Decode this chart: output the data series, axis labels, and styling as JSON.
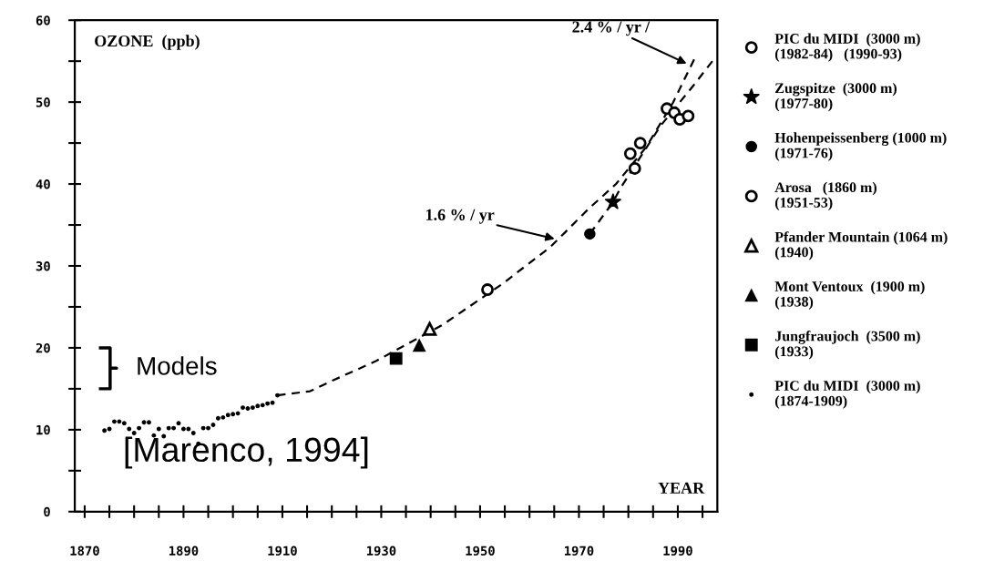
{
  "chart_data": {
    "type": "scatter",
    "ylabel": "OZONE  (ppb)",
    "xlabel": "YEAR",
    "xlim": [
      1868,
      1998
    ],
    "ylim": [
      0,
      60
    ],
    "xticks": [
      1870,
      {
        "value": 1875,
        "label": null
      },
      {
        "value": 1880,
        "label": null
      },
      {
        "value": 1885,
        "label": null
      },
      1890,
      {
        "value": 1895,
        "label": null
      },
      {
        "value": 1900,
        "label": null
      },
      {
        "value": 1905,
        "label": null
      },
      1910,
      {
        "value": 1915,
        "label": null
      },
      {
        "value": 1920,
        "label": null
      },
      {
        "value": 1925,
        "label": null
      },
      1930,
      {
        "value": 1935,
        "label": null
      },
      {
        "value": 1940,
        "label": null
      },
      {
        "value": 1945,
        "label": null
      },
      1950,
      {
        "value": 1955,
        "label": null
      },
      {
        "value": 1960,
        "label": null
      },
      {
        "value": 1965,
        "label": null
      },
      1970,
      {
        "value": 1975,
        "label": null
      },
      {
        "value": 1980,
        "label": null
      },
      {
        "value": 1985,
        "label": null
      },
      1990,
      {
        "value": 1995,
        "label": null
      }
    ],
    "yticks": [
      0,
      {
        "value": 5,
        "label": null
      },
      10,
      {
        "value": 15,
        "label": null
      },
      20,
      {
        "value": 25,
        "label": null
      },
      30,
      {
        "value": 35,
        "label": null
      },
      40,
      {
        "value": 45,
        "label": null
      },
      50,
      {
        "value": 55,
        "label": null
      },
      60
    ],
    "legend": "right",
    "grid": false,
    "series": [
      {
        "name": "PIC du MIDI  (3000 m)\n(1982-84)   (1990-93)",
        "color": "#000000",
        "marker": "circle_open",
        "x": [
          1980.4,
          1981.3,
          1982.4,
          1987.8,
          1989.3,
          1990.4,
          1992.1
        ],
        "values": [
          43.7,
          41.9,
          45.0,
          49.2,
          48.7,
          47.9,
          48.3
        ]
      },
      {
        "name": "Zugspitze  (3000 m)\n(1977-80)",
        "color": "#000000",
        "marker": "star",
        "x": [
          1976.9
        ],
        "values": [
          37.8
        ]
      },
      {
        "name": "Hohenpeissenberg (1000 m)\n(1971-76)",
        "color": "#000000",
        "marker": "circle",
        "x": [
          1972.2
        ],
        "values": [
          33.9
        ]
      },
      {
        "name": "Arosa   (1860 m)\n(1951-53)",
        "color": "#000000",
        "marker": "circle_open",
        "x": [
          1951.5
        ],
        "values": [
          27.1
        ]
      },
      {
        "name": "Pfander Mountain (1064 m)\n(1940)",
        "color": "#000000",
        "marker": "triangle_open",
        "x": [
          1939.8
        ],
        "values": [
          22.3
        ]
      },
      {
        "name": "Mont Ventoux  (1900 m)\n(1938)",
        "color": "#000000",
        "marker": "triangle",
        "x": [
          1937.7
        ],
        "values": [
          20.3
        ]
      },
      {
        "name": "Jungfraujoch  (3500 m)\n(1933)",
        "color": "#000000",
        "marker": "square",
        "x": [
          1933.0
        ],
        "values": [
          18.7
        ]
      },
      {
        "name": "PIC du MIDI  (3000 m)\n(1874-1909)",
        "color": "#000000",
        "marker": "dot",
        "x": [
          1874,
          1875,
          1876,
          1877,
          1878,
          1879,
          1880,
          1881,
          1882,
          1883,
          1884,
          1885,
          1886,
          1887,
          1888,
          1889,
          1890,
          1891,
          1892,
          1893,
          1894,
          1895,
          1896,
          1897,
          1898,
          1899,
          1900,
          1901,
          1902,
          1903,
          1904,
          1905,
          1906,
          1907,
          1908,
          1909
        ],
        "values": [
          9.9,
          10.1,
          11.0,
          11.0,
          10.8,
          10.1,
          9.6,
          10.2,
          10.9,
          10.9,
          9.3,
          10.1,
          9.2,
          10.2,
          10.2,
          10.8,
          10.1,
          10.1,
          9.6,
          8.3,
          10.2,
          10.2,
          10.6,
          11.4,
          11.5,
          11.8,
          11.9,
          12.0,
          12.7,
          12.6,
          12.7,
          12.9,
          13.0,
          13.2,
          13.3,
          14.2
        ]
      },
      {
        "type": "line",
        "color": "#000000",
        "line_style": "dashed",
        "marker": "none",
        "x": [
          1909,
          1915.6,
          1920.5,
          1929,
          1942.4,
          1954.5,
          1964.2,
          1967.2,
          1972,
          1977.5,
          1983.6,
          1989,
          1993.3
        ],
        "values": [
          14.2,
          14.7,
          16.1,
          18.4,
          22.8,
          27.8,
          32.3,
          34.1,
          37.0,
          40.0,
          44.5,
          49.9,
          55.2
        ]
      },
      {
        "type": "line",
        "color": "#000000",
        "line_style": "dashed",
        "marker": "none",
        "x": [
          1972.2,
          1976.9,
          1978.4,
          1986.5,
          1993.0,
          1997.0
        ],
        "values": [
          33.9,
          37.8,
          39.5,
          47.1,
          51.9,
          55.0
        ]
      }
    ],
    "annotations": [
      {
        "text": "1.6 % / yr",
        "x": 1965.1,
        "y": 33.3
      },
      {
        "text": "2.4 % / yr /",
        "x": 1991.8,
        "y": 54.7
      },
      "Models",
      "[Marenco, 1994]"
    ]
  }
}
